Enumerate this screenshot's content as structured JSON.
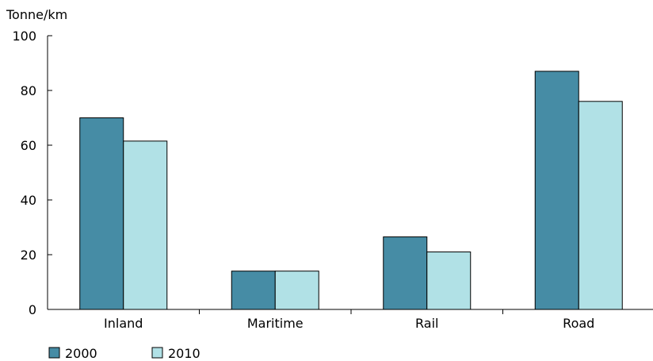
{
  "chart_data": {
    "type": "bar",
    "title": "",
    "ylabel": "Tonne/km",
    "xlabel": "",
    "ylim": [
      0,
      100
    ],
    "yticks": [
      0,
      20,
      40,
      60,
      80,
      100
    ],
    "categories": [
      "Inland",
      "Maritime",
      "Rail",
      "Road"
    ],
    "series": [
      {
        "name": "2000",
        "values": [
          70,
          14,
          26.5,
          87
        ],
        "color": "#468ca5"
      },
      {
        "name": "2010",
        "values": [
          61.5,
          14,
          21,
          76
        ],
        "color": "#b1e1e6"
      }
    ],
    "grid": false,
    "legend_position": "bottom-left"
  }
}
